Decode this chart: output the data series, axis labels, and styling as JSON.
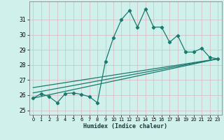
{
  "xlabel": "Humidex (Indice chaleur)",
  "bg_color": "#cff0eb",
  "grid_color": "#e8e8e8",
  "line_color": "#1a7a6e",
  "xlim": [
    -0.5,
    23.5
  ],
  "ylim": [
    24.7,
    32.2
  ],
  "yticks": [
    25,
    26,
    27,
    28,
    29,
    30,
    31
  ],
  "xticks": [
    0,
    1,
    2,
    3,
    4,
    5,
    6,
    7,
    8,
    9,
    10,
    11,
    12,
    13,
    14,
    15,
    16,
    17,
    18,
    19,
    20,
    21,
    22,
    23
  ],
  "main_x": [
    0,
    1,
    2,
    3,
    4,
    5,
    6,
    7,
    8,
    9,
    10,
    11,
    12,
    13,
    14,
    15,
    16,
    17,
    18,
    19,
    20,
    21,
    22,
    23
  ],
  "main_y": [
    25.8,
    26.1,
    25.9,
    25.5,
    26.1,
    26.15,
    26.05,
    25.9,
    25.5,
    28.2,
    29.8,
    31.0,
    31.6,
    30.5,
    31.7,
    30.5,
    30.5,
    29.5,
    29.95,
    28.85,
    28.85,
    29.1,
    28.5,
    28.4
  ],
  "trend1_x": [
    0,
    23
  ],
  "trend1_y": [
    25.8,
    28.4
  ],
  "trend2_x": [
    0,
    23
  ],
  "trend2_y": [
    26.15,
    28.4
  ],
  "trend3_x": [
    0,
    23
  ],
  "trend3_y": [
    26.5,
    28.4
  ]
}
